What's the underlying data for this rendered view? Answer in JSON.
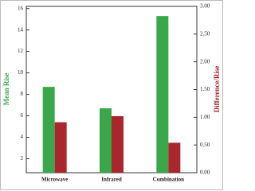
{
  "chart_data": {
    "type": "bar",
    "categories": [
      "Microwave",
      "Infrared",
      "Combination"
    ],
    "y_label": "Mean Rise",
    "y2_label": "Difference/Rise",
    "series": [
      {
        "name": "Mean Rise",
        "color": "#3aa84a",
        "values": [
          8.7,
          6.7,
          15.3
        ]
      },
      {
        "name": "Difference/Rise",
        "color": "#a8262c",
        "axis": "y2",
        "values": [
          0.91,
          1.02,
          0.54
        ]
      }
    ],
    "ylim": [
      0.7,
      16.2
    ],
    "yticks": [
      2,
      4,
      6,
      8,
      10,
      12,
      14,
      16
    ],
    "y2lim": [
      0,
      3
    ],
    "y2ticks": [
      {
        "value": 0,
        "label": "0.00"
      },
      {
        "value": 0.5,
        "label": "0.50"
      },
      {
        "value": 1,
        "label": "1.00"
      },
      {
        "value": 1.5,
        "label": "1.50"
      },
      {
        "value": 2,
        "label": "2.00"
      },
      {
        "value": 2.5,
        "label": "2.50"
      },
      {
        "value": 3,
        "label": "3.00"
      }
    ]
  }
}
